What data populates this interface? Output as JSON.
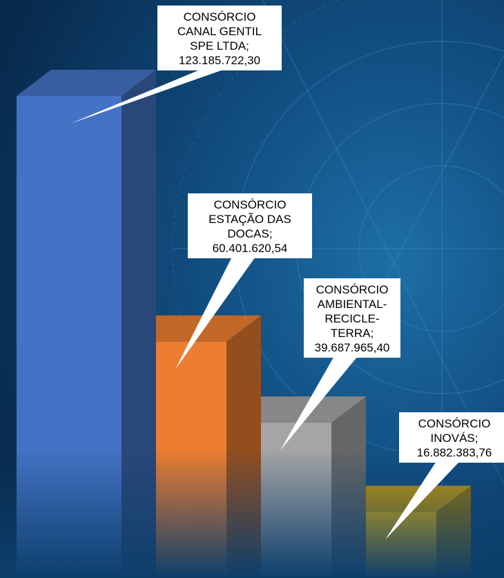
{
  "chart_data": {
    "type": "bar",
    "title": "",
    "xlabel": "",
    "ylabel": "",
    "ylim": [
      0,
      135000000
    ],
    "categories": [
      "CONSÓRCIO CANAL GENTIL SPE LTDA",
      "CONSÓRCIO ESTAÇÃO DAS DOCAS",
      "CONSÓRCIO AMBIENTAL-RECICLE-TERRA",
      "CONSÓRCIO INOVÁS"
    ],
    "values": [
      123185722.3,
      60401620.54,
      39687965.4,
      16882383.76
    ],
    "data_labels": [
      [
        "CONSÓRCIO",
        "CANAL GENTIL",
        "SPE LTDA;",
        "123.185.722,30"
      ],
      [
        "CONSÓRCIO",
        "ESTAÇÃO DAS",
        "DOCAS;",
        "60.401.620,54"
      ],
      [
        "CONSÓRCIO",
        "AMBIENTAL-",
        "RECICLE-",
        "TERRA;",
        "39.687.965,40"
      ],
      [
        "CONSÓRCIO",
        "INOVÁS;",
        "16.882.383,76"
      ]
    ],
    "colors": [
      "#4472c4",
      "#ed7d31",
      "#a5a5a5",
      "#ffc000"
    ],
    "grid": false,
    "legend": "none"
  }
}
